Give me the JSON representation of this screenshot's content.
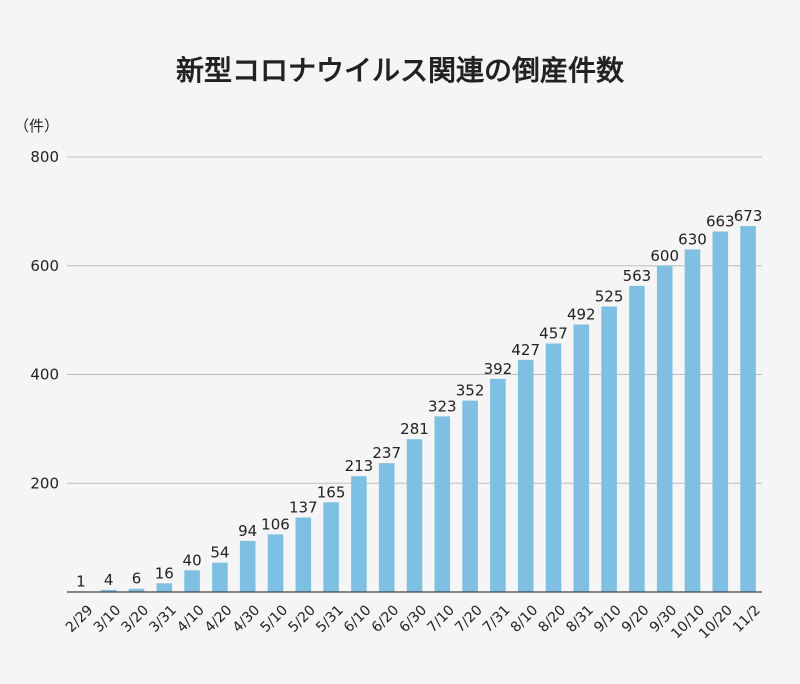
{
  "chart_data": {
    "type": "bar",
    "title": "新型コロナウイルス関連の倒産件数",
    "y_unit_label": "（件）",
    "categories": [
      "2/29",
      "3/10",
      "3/20",
      "3/31",
      "4/10",
      "4/20",
      "4/30",
      "5/10",
      "5/20",
      "5/31",
      "6/10",
      "6/20",
      "6/30",
      "7/10",
      "7/20",
      "7/31",
      "8/10",
      "8/20",
      "8/31",
      "9/10",
      "9/20",
      "9/30",
      "10/10",
      "10/20",
      "11/2"
    ],
    "values": [
      1,
      4,
      6,
      16,
      40,
      54,
      94,
      106,
      137,
      165,
      213,
      237,
      281,
      323,
      352,
      392,
      427,
      457,
      492,
      525,
      563,
      600,
      630,
      663,
      673
    ],
    "ylim": [
      0,
      800
    ],
    "yticks": [
      200,
      400,
      600,
      800
    ],
    "grid": true,
    "legend": "none",
    "bar_color": "#7ec0e4",
    "grid_color": "#bdbdbd",
    "axis_color": "#444444"
  }
}
